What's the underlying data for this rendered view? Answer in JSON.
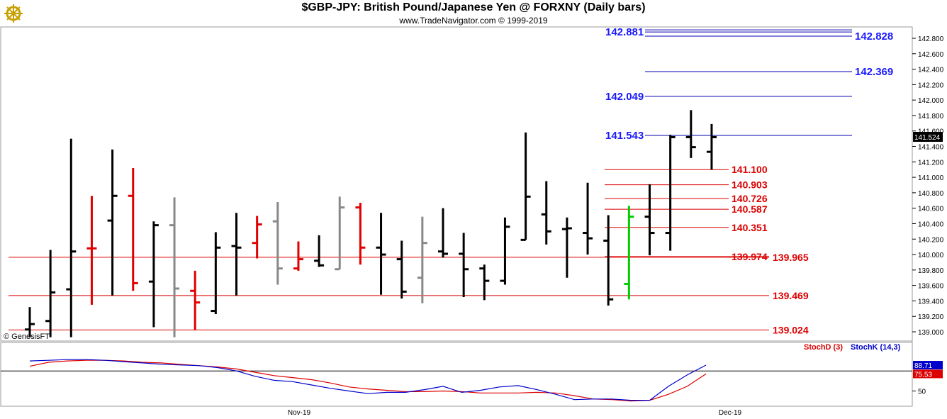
{
  "header": {
    "title": "$GBP-JPY:  British Pound/Japanese Yen @ FORXNY  (Daily bars)",
    "subtitle": "www.TradeNavigator.com © 1999-2019",
    "watermark": "© GenesisFT"
  },
  "colors": {
    "bar_black": "#000000",
    "bar_red": "#e00000",
    "bar_gray": "#888888",
    "bar_green": "#00cc00",
    "level_blue": "#0000b0",
    "level_red": "#dd0000",
    "label_blue": "#1a1aff",
    "stochD": "#dd0000",
    "stochK": "#0000cc"
  },
  "chart_data": [
    {
      "type": "ohlc",
      "title": "$GBP-JPY:  British Pound/Japanese Yen @ FORXNY  (Daily bars)",
      "y_axis_ticks": [
        "142.800",
        "142.600",
        "142.400",
        "142.200",
        "142.000",
        "141.800",
        "141.600",
        "141.400",
        "141.200",
        "141.000",
        "140.800",
        "140.600",
        "140.400",
        "140.200",
        "140.000",
        "139.800",
        "139.600",
        "139.400",
        "139.200",
        "139.000"
      ],
      "ylim": [
        138.93,
        142.92
      ],
      "x_labels": [
        "Nov-19",
        "Dec-19"
      ],
      "last_price": "141.524",
      "bars": [
        {
          "o": 139.03,
          "h": 139.32,
          "l": 138.93,
          "c": 139.1,
          "color": "black"
        },
        {
          "o": 139.14,
          "h": 140.06,
          "l": 138.93,
          "c": 139.51,
          "color": "black"
        },
        {
          "o": 139.55,
          "h": 141.5,
          "l": 138.93,
          "c": 140.04,
          "color": "black"
        },
        {
          "o": 140.08,
          "h": 140.76,
          "l": 139.35,
          "c": 140.08,
          "color": "red"
        },
        {
          "o": 140.44,
          "h": 141.36,
          "l": 139.47,
          "c": 140.76,
          "color": "black"
        },
        {
          "o": 140.76,
          "h": 141.12,
          "l": 139.53,
          "c": 139.63,
          "color": "red"
        },
        {
          "o": 139.65,
          "h": 140.43,
          "l": 139.06,
          "c": 140.38,
          "color": "black"
        },
        {
          "o": 140.38,
          "h": 140.74,
          "l": 138.93,
          "c": 139.56,
          "color": "gray"
        },
        {
          "o": 139.53,
          "h": 139.79,
          "l": 139.02,
          "c": 139.38,
          "color": "red"
        },
        {
          "o": 139.27,
          "h": 140.29,
          "l": 139.23,
          "c": 140.09,
          "color": "black"
        },
        {
          "o": 140.11,
          "h": 140.54,
          "l": 139.47,
          "c": 140.09,
          "color": "black"
        },
        {
          "o": 140.15,
          "h": 140.5,
          "l": 139.95,
          "c": 140.39,
          "color": "red"
        },
        {
          "o": 140.43,
          "h": 140.68,
          "l": 139.61,
          "c": 139.82,
          "color": "gray"
        },
        {
          "o": 139.82,
          "h": 140.17,
          "l": 139.79,
          "c": 139.94,
          "color": "red"
        },
        {
          "o": 139.92,
          "h": 140.25,
          "l": 139.84,
          "c": 139.86,
          "color": "black"
        },
        {
          "o": 139.81,
          "h": 140.75,
          "l": 139.81,
          "c": 140.61,
          "color": "gray"
        },
        {
          "o": 140.61,
          "h": 140.67,
          "l": 139.87,
          "c": 140.09,
          "color": "red"
        },
        {
          "o": 140.09,
          "h": 140.54,
          "l": 139.48,
          "c": 140.0,
          "color": "black"
        },
        {
          "o": 139.94,
          "h": 140.18,
          "l": 139.43,
          "c": 139.52,
          "color": "black"
        },
        {
          "o": 139.7,
          "h": 140.49,
          "l": 139.37,
          "c": 140.15,
          "color": "gray"
        },
        {
          "o": 140.04,
          "h": 140.6,
          "l": 139.96,
          "c": 140.01,
          "color": "black"
        },
        {
          "o": 140.01,
          "h": 140.28,
          "l": 139.45,
          "c": 139.81,
          "color": "black"
        },
        {
          "o": 139.82,
          "h": 139.87,
          "l": 139.41,
          "c": 139.66,
          "color": "black"
        },
        {
          "o": 139.66,
          "h": 140.48,
          "l": 139.61,
          "c": 140.36,
          "color": "black"
        },
        {
          "o": 140.19,
          "h": 141.58,
          "l": 140.19,
          "c": 140.75,
          "color": "black"
        },
        {
          "o": 140.52,
          "h": 140.95,
          "l": 140.13,
          "c": 140.3,
          "color": "black"
        },
        {
          "o": 140.33,
          "h": 140.48,
          "l": 139.7,
          "c": 140.34,
          "color": "black"
        },
        {
          "o": 140.28,
          "h": 140.93,
          "l": 140.0,
          "c": 140.21,
          "color": "black"
        },
        {
          "o": 140.18,
          "h": 140.51,
          "l": 139.34,
          "c": 139.42,
          "color": "black"
        },
        {
          "o": 139.62,
          "h": 140.63,
          "l": 139.42,
          "c": 140.49,
          "color": "green"
        },
        {
          "o": 140.49,
          "h": 140.91,
          "l": 139.99,
          "c": 140.28,
          "color": "black"
        },
        {
          "o": 140.28,
          "h": 141.55,
          "l": 140.05,
          "c": 141.52,
          "color": "black"
        },
        {
          "o": 141.52,
          "h": 141.87,
          "l": 141.25,
          "c": 141.39,
          "color": "black"
        },
        {
          "o": 141.33,
          "h": 141.69,
          "l": 141.1,
          "c": 141.52,
          "color": "black"
        }
      ],
      "levels_blue": [
        "142.881",
        "142.828",
        "142.369",
        "142.049",
        "141.543"
      ],
      "levels_red": [
        "141.100",
        "140.903",
        "140.726",
        "140.587",
        "140.351",
        "139.974",
        "139.965",
        "139.469",
        "139.024"
      ]
    },
    {
      "type": "line",
      "series": [
        {
          "name": "StochD (3)",
          "last_label": "75.53",
          "values": [
            87,
            93,
            95,
            96,
            96,
            95,
            93,
            92,
            90,
            88,
            86,
            83,
            78,
            73,
            70,
            67,
            62,
            56,
            53,
            51,
            49,
            49,
            50,
            49,
            47,
            47,
            47,
            48,
            47,
            43,
            38,
            37,
            35,
            36,
            45,
            57,
            75.53
          ]
        },
        {
          "name": "StochK (14,3)",
          "last_label": "88.71",
          "values": [
            95,
            96,
            97,
            97,
            96,
            94,
            92,
            90,
            89,
            88,
            85,
            80,
            72,
            66,
            64,
            59,
            54,
            50,
            46,
            48,
            48,
            52,
            57,
            48,
            51,
            56,
            58,
            52,
            45,
            37,
            38,
            38,
            36,
            36,
            57,
            74,
            88.71
          ]
        }
      ],
      "y_axis_ticks": [
        "50"
      ],
      "ylim": [
        25,
        110
      ]
    }
  ]
}
